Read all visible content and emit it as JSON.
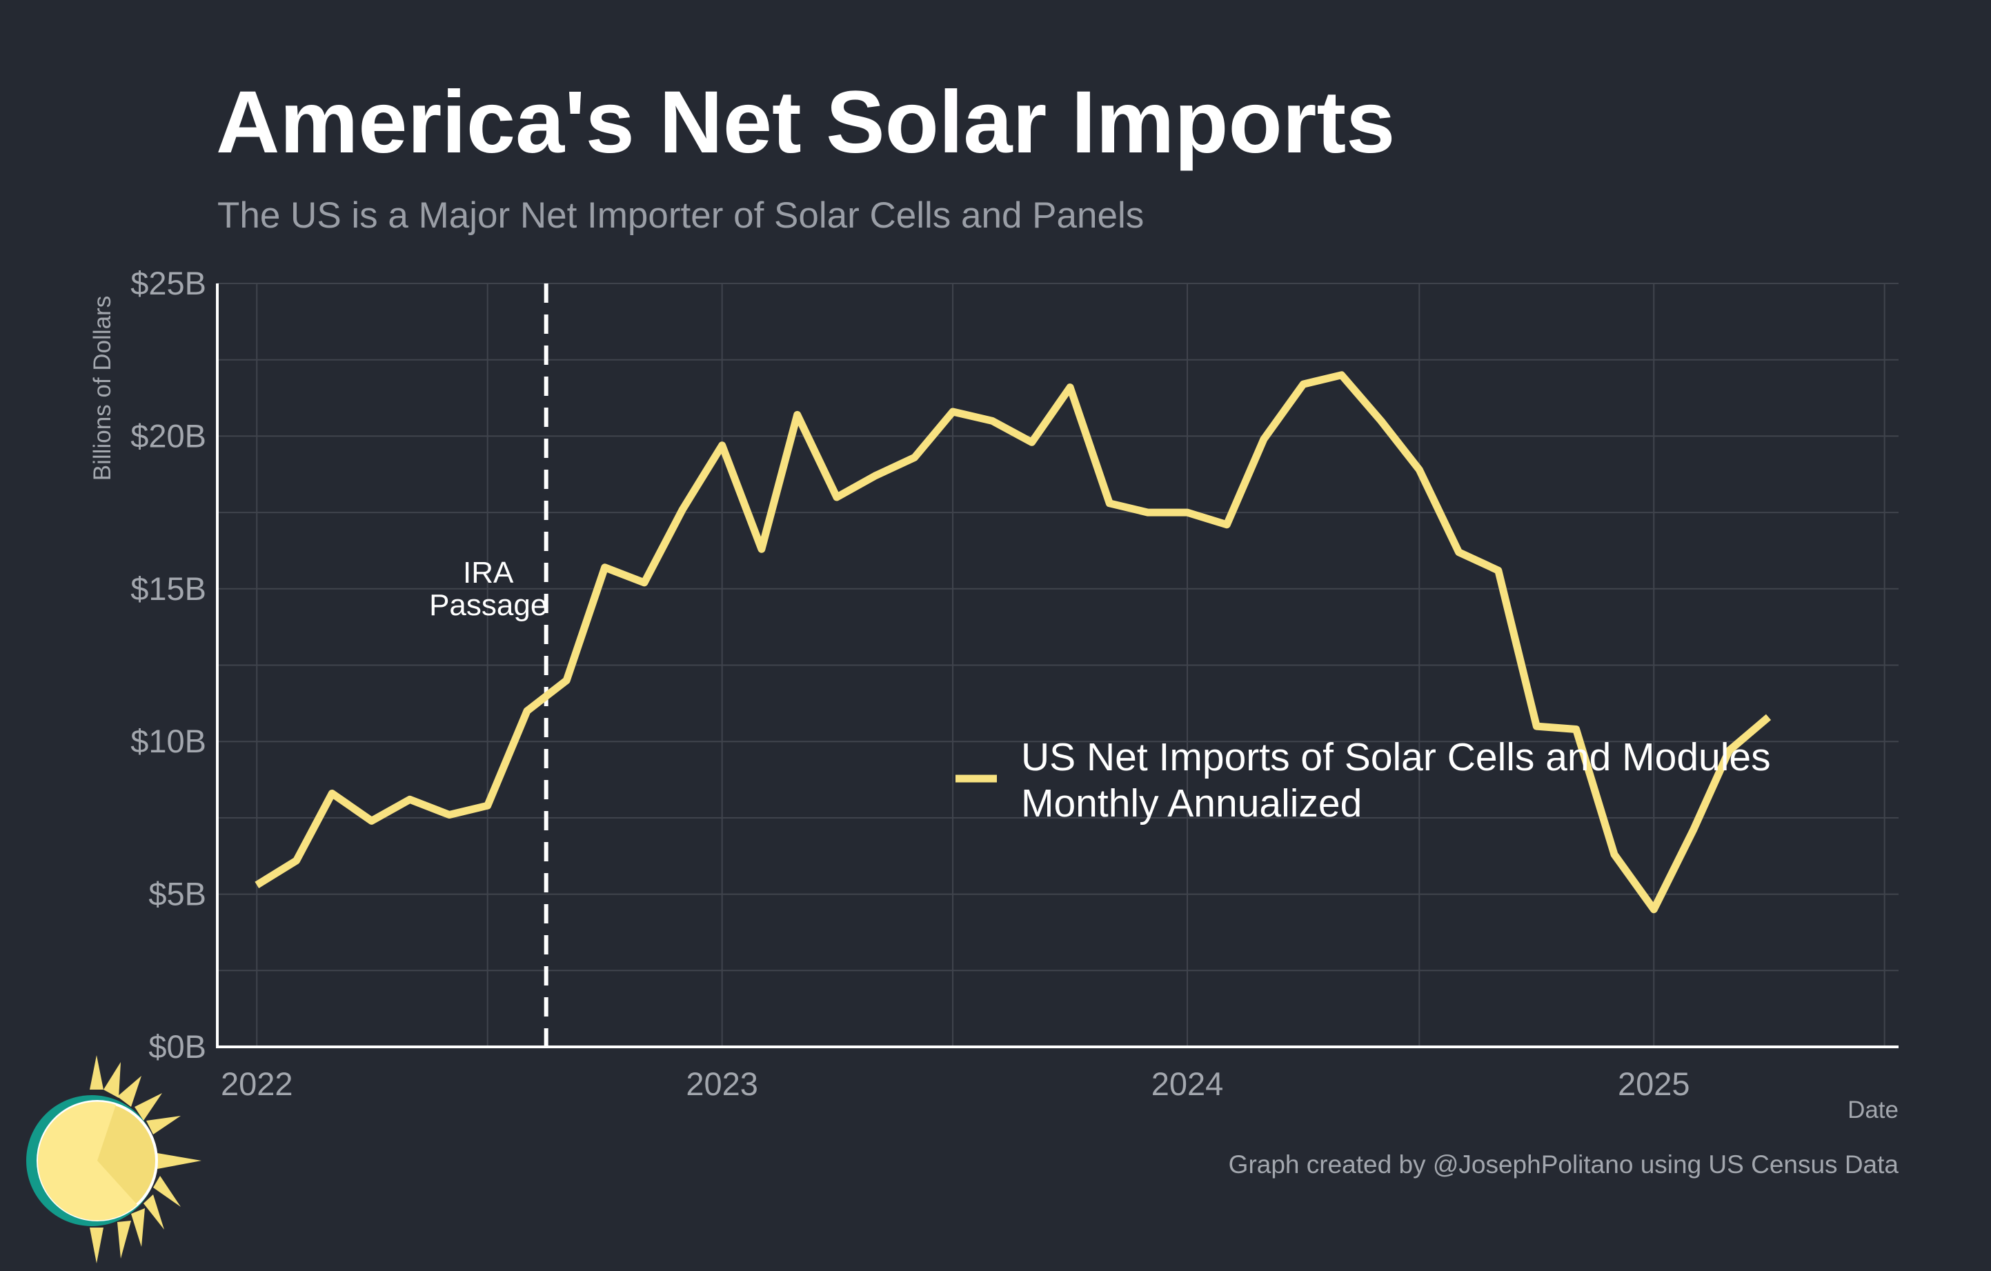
{
  "chart_data": {
    "type": "line",
    "title": "America's Net Solar Imports",
    "subtitle": "The US is a Major Net Importer of Solar Cells and Panels",
    "xlabel": "Date",
    "ylabel": "Billions of Dollars",
    "ylim": [
      0,
      25
    ],
    "y_ticks": [
      {
        "value": 0,
        "label": "$0B"
      },
      {
        "value": 5,
        "label": "$5B"
      },
      {
        "value": 10,
        "label": "$10B"
      },
      {
        "value": 15,
        "label": "$15B"
      },
      {
        "value": 20,
        "label": "$20B"
      },
      {
        "value": 25,
        "label": "$25B"
      }
    ],
    "x_ticks": [
      {
        "value": "2022-01",
        "label": "2022"
      },
      {
        "value": "2023-01",
        "label": "2023"
      },
      {
        "value": "2024-01",
        "label": "2024"
      },
      {
        "value": "2025-01",
        "label": "2025"
      }
    ],
    "grid": true,
    "legend_position": "center-right",
    "series": [
      {
        "name": "US Net Imports of Solar Cells and Modules Monthly Annualized",
        "legend_lines": [
          "US Net Imports of Solar Cells and Modules",
          "Monthly Annualized"
        ],
        "color": "#f8e281",
        "x": [
          "2022-01",
          "2022-02",
          "2022-03",
          "2022-04",
          "2022-05",
          "2022-06",
          "2022-07",
          "2022-08",
          "2022-09",
          "2022-10",
          "2022-11",
          "2022-12",
          "2023-01",
          "2023-02",
          "2023-03",
          "2023-04",
          "2023-05",
          "2023-06",
          "2023-07",
          "2023-08",
          "2023-09",
          "2023-10",
          "2023-11",
          "2023-12",
          "2024-01",
          "2024-02",
          "2024-03",
          "2024-04",
          "2024-05",
          "2024-06",
          "2024-07",
          "2024-08",
          "2024-09",
          "2024-10",
          "2024-11",
          "2024-12",
          "2025-01",
          "2025-02",
          "2025-03",
          "2025-04"
        ],
        "values": [
          5.3,
          6.1,
          8.3,
          7.4,
          8.1,
          7.6,
          7.9,
          11.0,
          12.0,
          15.7,
          15.2,
          17.6,
          19.7,
          16.3,
          20.7,
          18.0,
          18.7,
          19.3,
          20.8,
          20.5,
          19.8,
          21.6,
          17.8,
          17.5,
          17.5,
          17.1,
          19.9,
          21.7,
          22.0,
          20.5,
          18.9,
          16.2,
          15.6,
          10.5,
          10.4,
          6.3,
          4.5,
          7.1,
          9.7,
          10.8
        ]
      }
    ],
    "annotations": [
      {
        "type": "vline",
        "x": "2022-08-16",
        "label_lines": [
          "IRA",
          "Passage"
        ],
        "color": "#ffffff"
      }
    ]
  },
  "credit": "Graph created by @JosephPolitano using US Census Data",
  "logo": {
    "name": "sun-logo",
    "colors": [
      "#f6e07a",
      "#fde98e",
      "#139a8a"
    ]
  },
  "colors": {
    "background": "#252932",
    "grid": "#40444d",
    "axis": "#ffffff",
    "line": "#f8e281"
  }
}
